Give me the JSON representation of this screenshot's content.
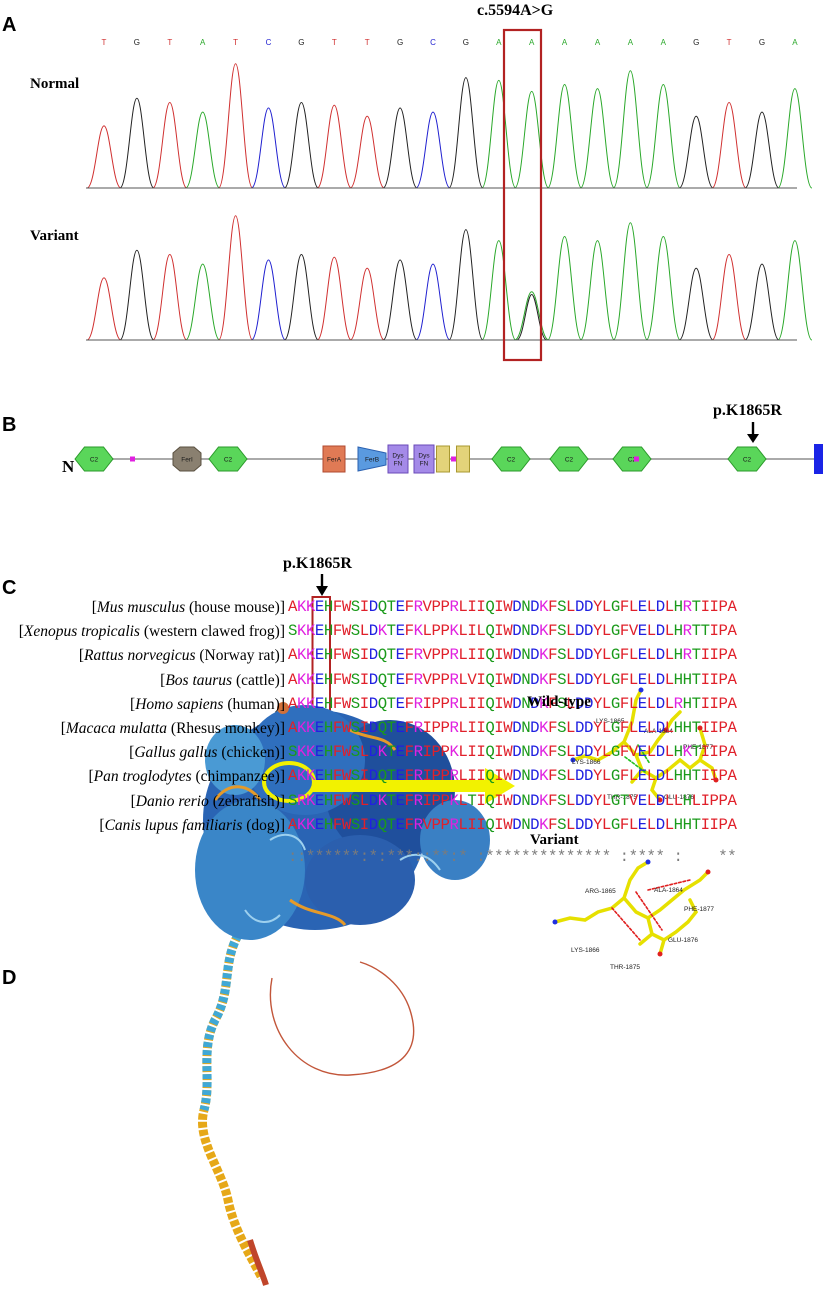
{
  "panel_a": {
    "letter": "A",
    "variant_label": "c.5594A>G",
    "bases": [
      "T",
      "G",
      "T",
      "A",
      "T",
      "C",
      "G",
      "T",
      "T",
      "G",
      "C",
      "G",
      "A",
      "A",
      "A",
      "A",
      "A",
      "A",
      "G",
      "T",
      "G",
      "A"
    ],
    "normal_label": "Normal",
    "variant_row_label": "Variant"
  },
  "panel_b": {
    "letter": "B",
    "mutation_label": "p.K1865R",
    "n_terminal": "N",
    "domains": [
      "C2",
      "FerI",
      "C2",
      "FerA",
      "FerB",
      "Dys FN",
      "Dys FN",
      "",
      "",
      "C2",
      "C2",
      "C2",
      "C2"
    ]
  },
  "panel_c": {
    "letter": "C",
    "mutation_label": "p.K1865R",
    "rows": [
      {
        "species_italic": "Mus musculus",
        "species_common": " (house mouse)]",
        "seq": "AKKEHFWSIDQTEFRVPPRLIIQIWDNDKFSLDDYLGFLELDLHRTIIPA"
      },
      {
        "species_italic": "Xenopus tropicalis",
        "species_common": " (western clawed frog)]",
        "seq": "SKKEHFWSLDKTEFKLPPKLILQIWDNDKFSLDDYLGFVELDLHRTTIPA"
      },
      {
        "species_italic": "Rattus norvegicus",
        "species_common": " (Norway rat)]",
        "seq": "AKKEHFWSIDQTEFRVPPRLIIQIWDNDKFSLDDYLGFLELDLHRTIIPA"
      },
      {
        "species_italic": "Bos taurus",
        "species_common": " (cattle)]",
        "seq": "AKKEHFWSIDQTEFRVPPRLVIQIWDNDKFSLDDYLGFLELDLHHTIIPA"
      },
      {
        "species_italic": "Homo sapiens",
        "species_common": " (human)]",
        "seq": "AKKEHFWSIDQTEFRIPPRLIIQIWDNDKFSLDDYLGFLELDLRHTIIPA"
      },
      {
        "species_italic": "Macaca mulatta",
        "species_common": " (Rhesus monkey)]",
        "seq": "AKKEHFWSIDQTEFRIPPRLIIQIWDNDKFSLDDYLGFLELDLHHTIIPA"
      },
      {
        "species_italic": "Gallus gallus",
        "species_common": " (chicken)]",
        "seq": "SKKEHFWSLDKTEFRIPPKLIIQIWDNDKFSLDDYLGFVELDLHKTIIPA"
      },
      {
        "species_italic": "Pan troglodytes",
        "species_common": " (chimpanzee)]",
        "seq": "AKKEHFWSIDQTEFRIPPRLIIQIWDNDKFSLDDYLGFLELDLHHTIIPA"
      },
      {
        "species_italic": "Danio rerio",
        "species_common": " (zebrafish)]",
        "seq": "SRKEHFWSLDKTEFRIPPKLTIQIWDNDKFSLDDYLGTVELDLLHLIPPA"
      },
      {
        "species_italic": "Canis lupus familiaris",
        "species_common": " (dog)]",
        "seq": "AKKEHFWSIDQTEFRVPPRLIIQIWDNDKFSLDDYLGFLELDLHHTIIPA"
      }
    ],
    "conservation": "::******:*:***::**:* :************** :**** :    **"
  },
  "panel_d": {
    "letter": "D",
    "wildtype_label": "Wild-type",
    "variant_label": "Variant",
    "wt_residues": [
      "LYS-1865",
      "ALA-1864",
      "PHE-1877",
      "LYS-1866",
      "THR-1875",
      "GLU-1876"
    ],
    "var_residues": [
      "ARG-1865",
      "ALA-1864",
      "PHE-1877",
      "LYS-1866",
      "THR-1875",
      "GLU-1876"
    ]
  },
  "colors": {
    "highlight_box": "#b22222",
    "seq_red": "#e0202a",
    "seq_blue": "#2020e0",
    "seq_magenta": "#e020e0",
    "seq_green": "#1a9a1a",
    "arrow_yellow": "#f2f200"
  }
}
